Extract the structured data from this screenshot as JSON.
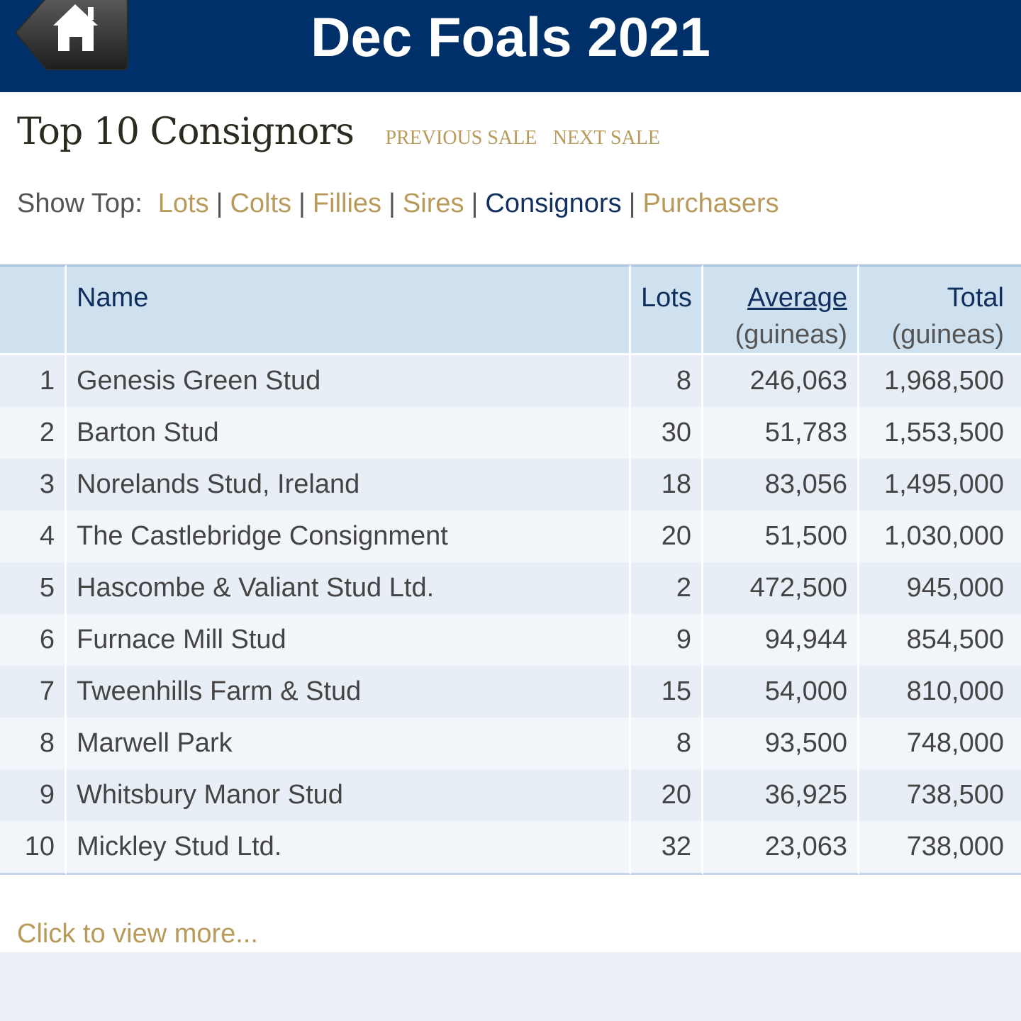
{
  "header": {
    "title": "Dec Foals 2021",
    "home_icon": "home-icon"
  },
  "page": {
    "title": "Top 10 Consignors",
    "previous_sale": "PREVIOUS SALE",
    "next_sale": "NEXT SALE"
  },
  "show_top": {
    "label": "Show Top:",
    "separator": "|",
    "links": [
      "Lots",
      "Colts",
      "Fillies",
      "Sires",
      "Consignors",
      "Purchasers"
    ],
    "active": "Consignors"
  },
  "table": {
    "headers": {
      "name": "Name",
      "lots": "Lots",
      "average": "Average",
      "average_unit": "(guineas)",
      "total": "Total",
      "total_unit": "(guineas)"
    },
    "rows": [
      {
        "rank": "1",
        "name": "Genesis Green Stud",
        "lots": "8",
        "average": "246,063",
        "total": "1,968,500"
      },
      {
        "rank": "2",
        "name": "Barton Stud",
        "lots": "30",
        "average": "51,783",
        "total": "1,553,500"
      },
      {
        "rank": "3",
        "name": "Norelands Stud, Ireland",
        "lots": "18",
        "average": "83,056",
        "total": "1,495,000"
      },
      {
        "rank": "4",
        "name": "The Castlebridge Consignment",
        "lots": "20",
        "average": "51,500",
        "total": "1,030,000"
      },
      {
        "rank": "5",
        "name": "Hascombe & Valiant Stud Ltd.",
        "lots": "2",
        "average": "472,500",
        "total": "945,000"
      },
      {
        "rank": "6",
        "name": "Furnace Mill Stud",
        "lots": "9",
        "average": "94,944",
        "total": "854,500"
      },
      {
        "rank": "7",
        "name": "Tweenhills Farm & Stud",
        "lots": "15",
        "average": "54,000",
        "total": "810,000"
      },
      {
        "rank": "8",
        "name": "Marwell Park",
        "lots": "8",
        "average": "93,500",
        "total": "748,000"
      },
      {
        "rank": "9",
        "name": "Whitsbury Manor Stud",
        "lots": "20",
        "average": "36,925",
        "total": "738,500"
      },
      {
        "rank": "10",
        "name": "Mickley Stud Ltd.",
        "lots": "32",
        "average": "23,063",
        "total": "738,000"
      }
    ]
  },
  "footer": {
    "view_more": "Click to view more..."
  },
  "colors": {
    "header_bg": "#00306a",
    "gold_link": "#b89a5a",
    "active_link": "#12305f",
    "table_header_bg": "#cfe0ef"
  }
}
